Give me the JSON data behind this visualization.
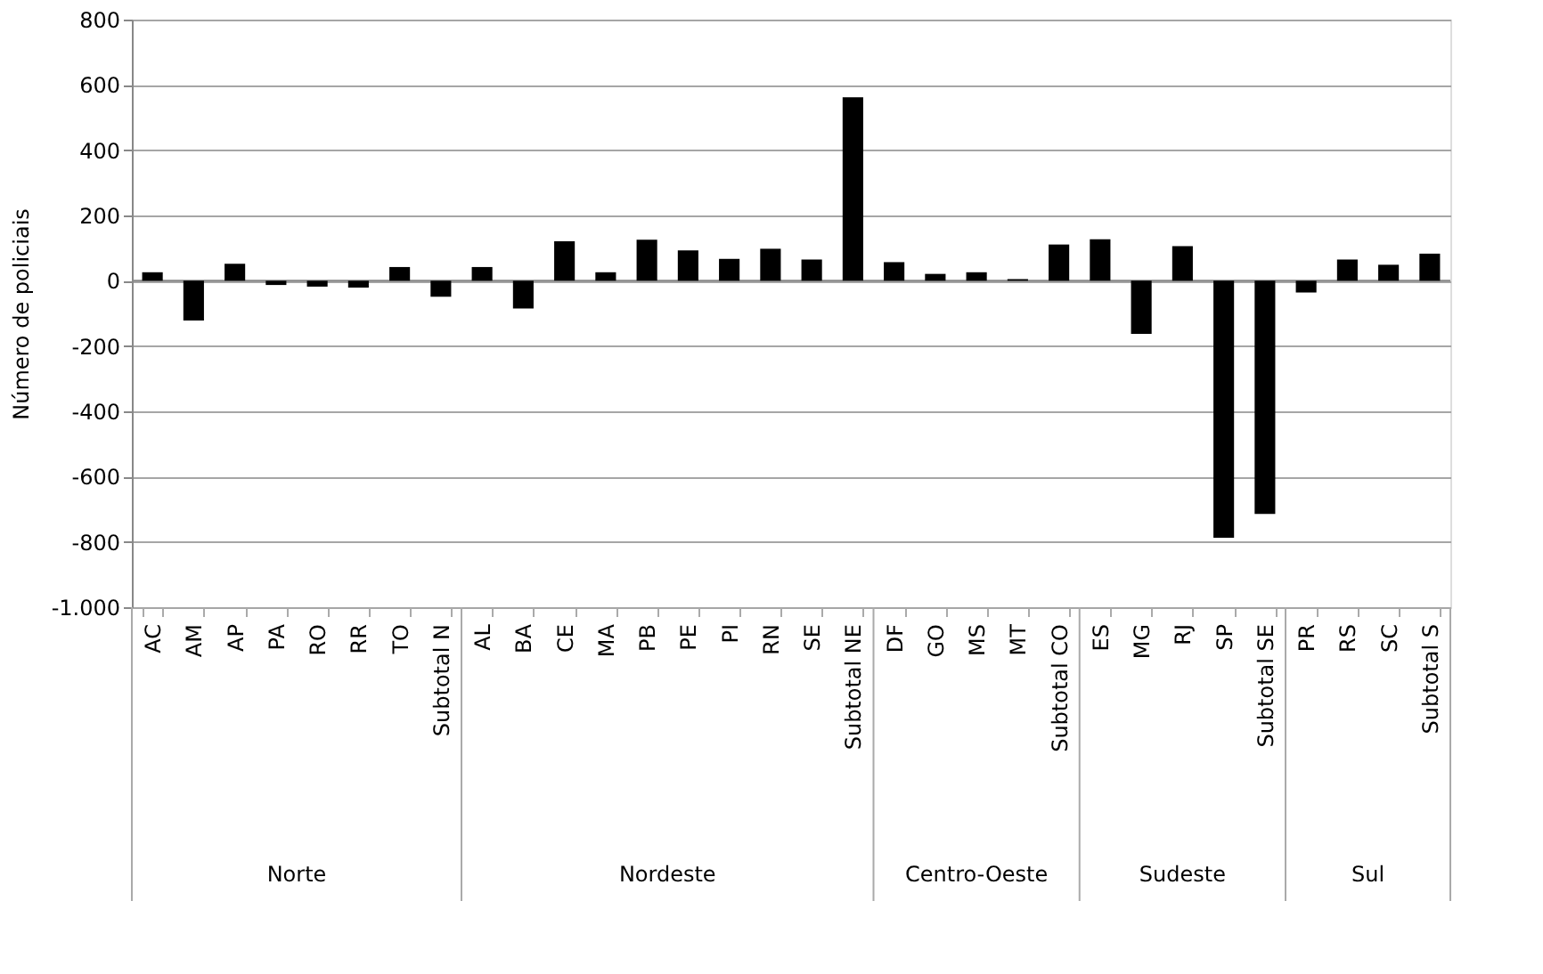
{
  "chart_data": {
    "type": "bar",
    "ylabel": "Número de policiais",
    "categories": [
      "AC",
      "AM",
      "AP",
      "PA",
      "RO",
      "RR",
      "TO",
      "Subtotal N",
      "AL",
      "BA",
      "CE",
      "MA",
      "PB",
      "PE",
      "PI",
      "RN",
      "SE",
      "Subtotal NE",
      "DF",
      "GO",
      "MS",
      "MT",
      "Subtotal CO",
      "ES",
      "MG",
      "RJ",
      "SP",
      "Subtotal SE",
      "PR",
      "RS",
      "SC",
      "Subtotal S"
    ],
    "values": [
      26,
      -122,
      52,
      -13,
      -18,
      -21,
      42,
      -49,
      42,
      -85,
      121,
      26,
      126,
      93,
      67,
      98,
      65,
      562,
      57,
      21,
      26,
      5,
      111,
      127,
      -163,
      106,
      -787,
      -714,
      -36,
      65,
      49,
      83
    ],
    "color": "#000000",
    "ylim": [
      -1000,
      800
    ],
    "yticks": [
      {
        "value": -1000,
        "label": "-1.000"
      },
      -800,
      -600,
      -400,
      -200,
      0,
      200,
      400,
      600,
      800
    ],
    "grid": "y",
    "annotations": [
      "Norte",
      "Nordeste",
      "Centro-Oeste",
      "Sudeste",
      "Sul"
    ]
  }
}
